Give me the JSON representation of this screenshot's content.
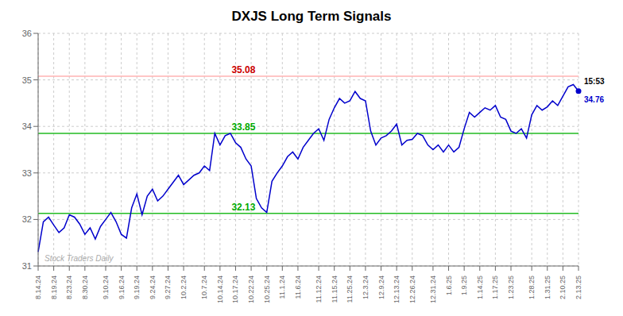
{
  "chart_data": {
    "type": "line",
    "title": "DXJS Long Term Signals",
    "categories": [
      "8.14.24",
      null,
      null,
      "8.19.24",
      null,
      null,
      "8.23.24",
      null,
      null,
      "8.30.24",
      null,
      null,
      null,
      "9.10.24",
      null,
      null,
      "9.16.24",
      null,
      null,
      "9.19.24",
      null,
      null,
      "9.24.24",
      null,
      null,
      "9.27.24",
      null,
      null,
      "10.2.24",
      null,
      null,
      null,
      "10.7.24",
      null,
      null,
      "10.14.24",
      null,
      null,
      "10.17.24",
      null,
      null,
      "10.22.24",
      null,
      null,
      "10.25.24",
      null,
      null,
      "11.1.24",
      null,
      null,
      "11.6.24",
      null,
      null,
      null,
      "11.12.24",
      null,
      null,
      "11.15.24",
      null,
      null,
      "11.25.24",
      null,
      null,
      "12.3.24",
      null,
      null,
      "12.9.24",
      null,
      null,
      "12.13.24",
      null,
      null,
      "12.26.24",
      null,
      null,
      null,
      "12.31.24",
      null,
      null,
      "1.6.25",
      null,
      null,
      "1.9.25",
      null,
      null,
      "1.14.25",
      null,
      null,
      "1.17.25",
      null,
      null,
      "1.23.25",
      null,
      null,
      null,
      "1.28.25",
      null,
      null,
      "1.31.25",
      null,
      null,
      "2.10.25",
      null,
      null,
      "2.13.25"
    ],
    "values": [
      31.3,
      31.95,
      32.05,
      31.88,
      31.72,
      31.82,
      32.1,
      32.05,
      31.9,
      31.68,
      31.82,
      31.58,
      31.85,
      32.0,
      32.15,
      31.95,
      31.68,
      31.6,
      32.25,
      32.55,
      32.1,
      32.5,
      32.65,
      32.4,
      32.5,
      32.65,
      32.8,
      32.95,
      32.75,
      32.85,
      32.95,
      33.0,
      33.15,
      33.05,
      33.85,
      33.6,
      33.8,
      33.85,
      33.65,
      33.55,
      33.3,
      33.15,
      32.45,
      32.25,
      32.15,
      32.82,
      33.0,
      33.15,
      33.35,
      33.45,
      33.3,
      33.55,
      33.7,
      33.85,
      33.95,
      33.7,
      34.15,
      34.4,
      34.6,
      34.5,
      34.55,
      34.75,
      34.6,
      34.55,
      33.9,
      33.6,
      33.75,
      33.8,
      33.9,
      34.05,
      33.6,
      33.7,
      33.72,
      33.85,
      33.8,
      33.6,
      33.5,
      33.6,
      33.45,
      33.6,
      33.45,
      33.55,
      33.95,
      34.3,
      34.2,
      34.3,
      34.4,
      34.35,
      34.45,
      34.2,
      34.15,
      33.9,
      33.85,
      33.95,
      33.75,
      34.25,
      34.45,
      34.35,
      34.42,
      34.55,
      34.45,
      34.65,
      34.85,
      34.9,
      34.76
    ],
    "color": "#0000cc",
    "ylim": [
      31,
      36
    ],
    "yticks": [
      31,
      32,
      33,
      34,
      35,
      36
    ],
    "grid": true,
    "reference_lines": [
      {
        "value": 35.08,
        "color": "#ffb3b3",
        "label": "35.08",
        "label_color": "#cc0000"
      },
      {
        "value": 33.85,
        "color": "#22bb22",
        "label": "33.85",
        "label_color": "#00aa00"
      },
      {
        "value": 32.13,
        "color": "#22bb22",
        "label": "32.13",
        "label_color": "#00aa00"
      }
    ],
    "annotations": [
      {
        "text": "15:53",
        "x": 104,
        "y": 34.76,
        "color": "#000000",
        "position": "above"
      },
      {
        "text": "34.76",
        "x": 104,
        "y": 34.76,
        "color": "#0000cc",
        "position": "below"
      },
      {
        "text": "Stock Traders Daily",
        "color": "#aaaaaa",
        "position": "bottom left"
      }
    ]
  }
}
